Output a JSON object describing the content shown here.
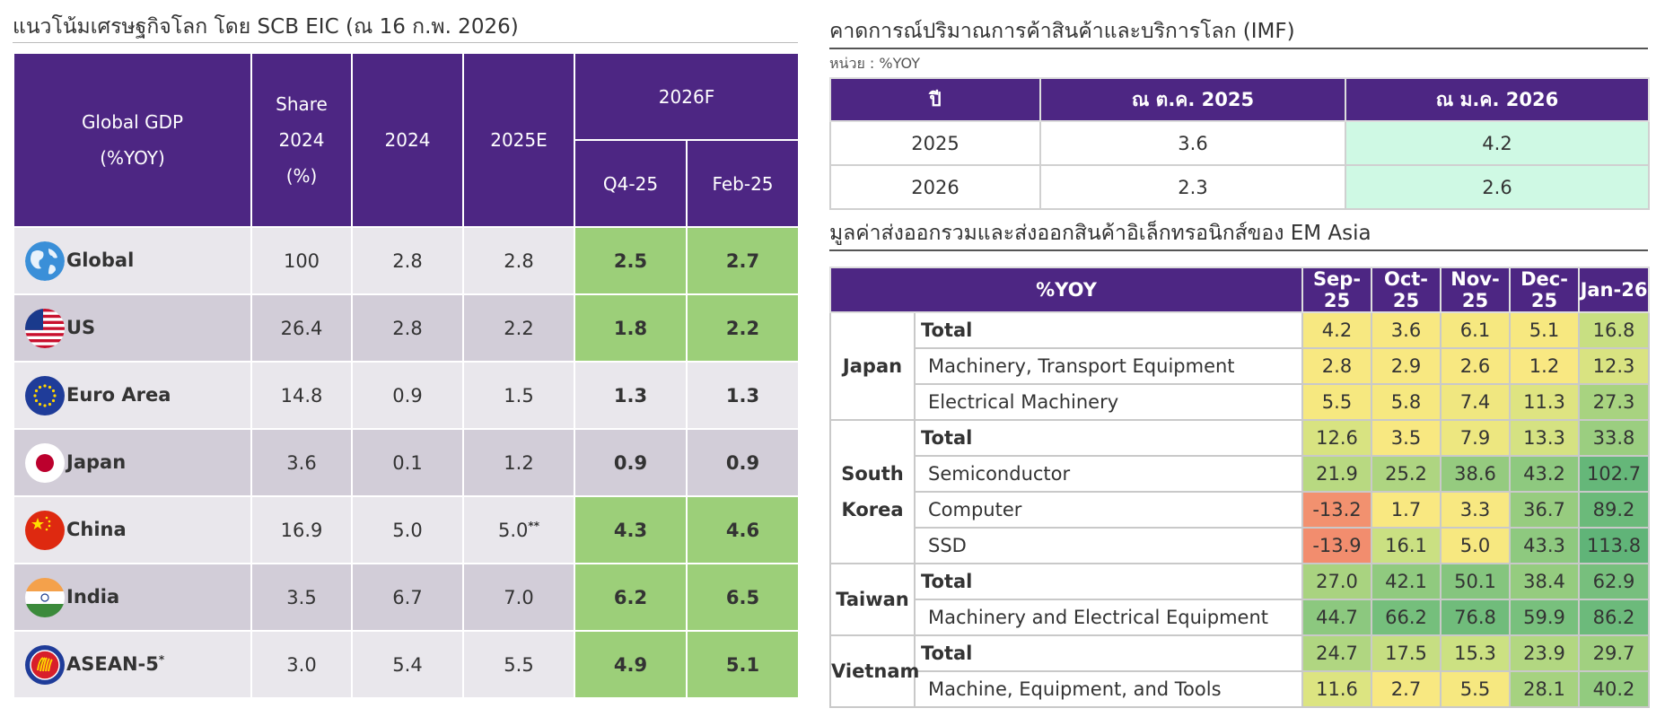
{
  "left": {
    "title": "แนวโน้มเศรษฐกิจโลก โดย SCB EIC (ณ 16 ก.พ. 2026)",
    "header": {
      "gdp_line1": "Global GDP",
      "gdp_line2": "(%YOY)",
      "share_line1": "Share",
      "share_line2": "2024",
      "share_line3": "(%)",
      "y2024": "2024",
      "y2025": "2025E",
      "y2026": "2026F",
      "q4": "Q4-25",
      "feb": "Feb-25"
    },
    "rows": [
      {
        "country": "Global",
        "sup": "",
        "share": "100",
        "y2024": "2.8",
        "y2025": "2.8",
        "y2025_sup": "",
        "q4": "2.5",
        "feb": "2.7",
        "flag": "globe-icon"
      },
      {
        "country": "US",
        "sup": "",
        "share": "26.4",
        "y2024": "2.8",
        "y2025": "2.2",
        "y2025_sup": "",
        "q4": "1.8",
        "feb": "2.2",
        "flag": "us-flag-icon"
      },
      {
        "country": "Euro Area",
        "sup": "",
        "share": "14.8",
        "y2024": "0.9",
        "y2025": "1.5",
        "y2025_sup": "",
        "q4": "1.3",
        "feb": "1.3",
        "flag": "eu-flag-icon"
      },
      {
        "country": "Japan",
        "sup": "",
        "share": "3.6",
        "y2024": "0.1",
        "y2025": "1.2",
        "y2025_sup": "",
        "q4": "0.9",
        "feb": "0.9",
        "flag": "japan-flag-icon"
      },
      {
        "country": "China",
        "sup": "",
        "share": "16.9",
        "y2024": "5.0",
        "y2025": "5.0",
        "y2025_sup": "**",
        "q4": "4.3",
        "feb": "4.6",
        "flag": "china-flag-icon"
      },
      {
        "country": "India",
        "sup": "",
        "share": "3.5",
        "y2024": "6.7",
        "y2025": "7.0",
        "y2025_sup": "",
        "q4": "6.2",
        "feb": "6.5",
        "flag": "india-flag-icon"
      },
      {
        "country": "ASEAN-5",
        "sup": "*",
        "share": "3.0",
        "y2024": "5.4",
        "y2025": "5.5",
        "y2025_sup": "",
        "q4": "4.9",
        "feb": "5.1",
        "flag": "asean-flag-icon"
      }
    ]
  },
  "imf": {
    "title": "คาดการณ์ปริมาณการค้าสินค้าและบริการโลก (IMF)",
    "unit": "หน่วย : %YOY",
    "header": {
      "year": "ปี",
      "oct": "ณ ต.ค. 2025",
      "jan": "ณ ม.ค. 2026"
    },
    "rows": [
      {
        "year": "2025",
        "oct": "3.6",
        "jan": "4.2"
      },
      {
        "year": "2026",
        "oct": "2.3",
        "jan": "2.6"
      }
    ]
  },
  "em": {
    "title": "มูลค่าส่งออกรวมและส่งออกสินค้าอิเล็กทรอนิกส์ของ EM Asia",
    "header": {
      "label": "%YOY",
      "months": [
        "Sep-25",
        "Oct-25",
        "Nov-25",
        "Dec-25",
        "Jan-26"
      ]
    },
    "groups": [
      {
        "name_lines": [
          "Japan"
        ],
        "rows": [
          {
            "item": "Total",
            "values": [
              "4.2",
              "3.6",
              "6.1",
              "5.1",
              "16.8"
            ]
          },
          {
            "item": "Machinery, Transport Equipment",
            "values": [
              "2.8",
              "2.9",
              "2.6",
              "1.2",
              "12.3"
            ]
          },
          {
            "item": "Electrical Machinery",
            "values": [
              "5.5",
              "5.8",
              "7.4",
              "11.3",
              "27.3"
            ]
          }
        ]
      },
      {
        "name_lines": [
          "South",
          "Korea"
        ],
        "rows": [
          {
            "item": "Total",
            "values": [
              "12.6",
              "3.5",
              "7.9",
              "13.3",
              "33.8"
            ]
          },
          {
            "item": "Semiconductor",
            "values": [
              "21.9",
              "25.2",
              "38.6",
              "43.2",
              "102.7"
            ]
          },
          {
            "item": "Computer",
            "values": [
              "-13.2",
              "1.7",
              "3.3",
              "36.7",
              "89.2"
            ]
          },
          {
            "item": "SSD",
            "values": [
              "-13.9",
              "16.1",
              "5.0",
              "43.3",
              "113.8"
            ]
          }
        ]
      },
      {
        "name_lines": [
          "Taiwan"
        ],
        "rows": [
          {
            "item": "Total",
            "values": [
              "27.0",
              "42.1",
              "50.1",
              "38.4",
              "62.9"
            ]
          },
          {
            "item": "Machinery and Electrical Equipment",
            "values": [
              "44.7",
              "66.2",
              "76.8",
              "59.9",
              "86.2"
            ]
          }
        ]
      },
      {
        "name_lines": [
          "Vietnam"
        ],
        "rows": [
          {
            "item": "Total",
            "values": [
              "24.7",
              "17.5",
              "15.3",
              "23.9",
              "29.7"
            ]
          },
          {
            "item": "Machine, Equipment, and Tools",
            "values": [
              "11.6",
              "2.7",
              "5.5",
              "28.1",
              "40.2"
            ]
          }
        ]
      }
    ]
  },
  "colors": {
    "header_purple": "#4d2683",
    "forecast_green": "#9ccf79",
    "mint": "#cff9e4"
  }
}
